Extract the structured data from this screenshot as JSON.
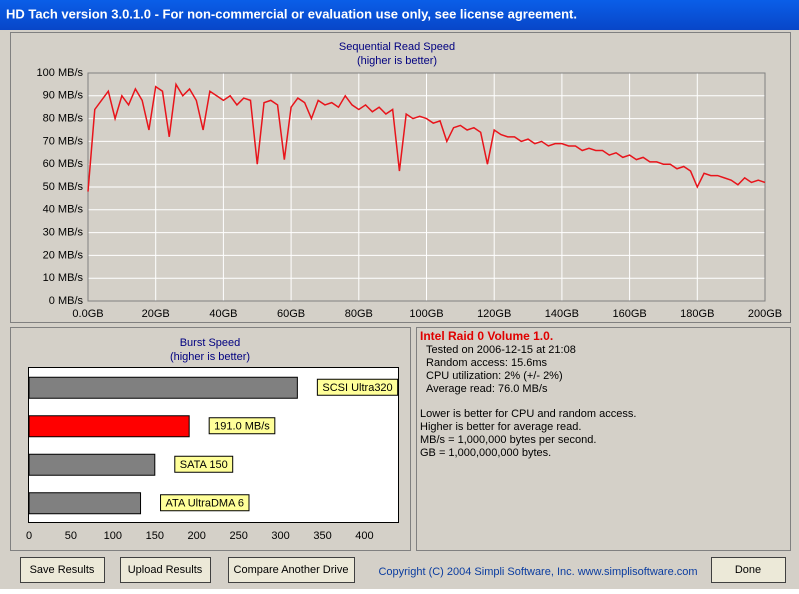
{
  "window": {
    "title": "HD Tach version 3.0.1.0  - For non-commercial or evaluation use only, see license agreement."
  },
  "chart_data": [
    {
      "type": "line",
      "title": "Sequential Read Speed",
      "subtitle": "(higher is better)",
      "color": "#e8141b",
      "grid": true,
      "x": [
        0,
        2,
        4,
        6,
        8,
        10,
        12,
        14,
        16,
        18,
        20,
        22,
        24,
        26,
        28,
        30,
        32,
        34,
        36,
        38,
        40,
        42,
        44,
        46,
        48,
        50,
        52,
        54,
        56,
        58,
        60,
        62,
        64,
        66,
        68,
        70,
        72,
        74,
        76,
        78,
        80,
        82,
        84,
        86,
        88,
        90,
        92,
        94,
        96,
        98,
        100,
        102,
        104,
        106,
        108,
        110,
        112,
        114,
        116,
        118,
        120,
        122,
        124,
        126,
        128,
        130,
        132,
        134,
        136,
        138,
        140,
        142,
        144,
        146,
        148,
        150,
        152,
        154,
        156,
        158,
        160,
        162,
        164,
        166,
        168,
        170,
        172,
        174,
        176,
        178,
        180,
        182,
        184,
        186,
        188,
        190,
        192,
        194,
        196,
        198,
        200
      ],
      "values": [
        48,
        84,
        88,
        92,
        80,
        90,
        86,
        93,
        88,
        75,
        94,
        92,
        72,
        95,
        90,
        93,
        88,
        75,
        92,
        90,
        88,
        90,
        86,
        89,
        88,
        60,
        87,
        88,
        86,
        62,
        85,
        89,
        87,
        80,
        88,
        86,
        87,
        85,
        90,
        86,
        84,
        86,
        83,
        85,
        82,
        84,
        57,
        82,
        80,
        81,
        80,
        78,
        79,
        70,
        76,
        77,
        75,
        76,
        74,
        60,
        75,
        73,
        72,
        72,
        70,
        71,
        69,
        70,
        68,
        69,
        69,
        68,
        68,
        66,
        67,
        66,
        66,
        64,
        65,
        63,
        64,
        62,
        63,
        61,
        61,
        60,
        60,
        58,
        59,
        57,
        50,
        56,
        55,
        55,
        54,
        53,
        51,
        54,
        52,
        53,
        52
      ],
      "xlim": [
        0,
        200
      ],
      "ylim": [
        0,
        100
      ],
      "xticks": [
        {
          "value": 0,
          "label": "0.0GB"
        },
        {
          "value": 20,
          "label": "20GB"
        },
        {
          "value": 40,
          "label": "40GB"
        },
        {
          "value": 60,
          "label": "60GB"
        },
        {
          "value": 80,
          "label": "80GB"
        },
        {
          "value": 100,
          "label": "100GB"
        },
        {
          "value": 120,
          "label": "120GB"
        },
        {
          "value": 140,
          "label": "140GB"
        },
        {
          "value": 160,
          "label": "160GB"
        },
        {
          "value": 180,
          "label": "180GB"
        },
        {
          "value": 200,
          "label": "200GB"
        }
      ],
      "yticks": [
        {
          "value": 0,
          "label": "0 MB/s"
        },
        {
          "value": 10,
          "label": "10 MB/s"
        },
        {
          "value": 20,
          "label": "20 MB/s"
        },
        {
          "value": 30,
          "label": "30 MB/s"
        },
        {
          "value": 40,
          "label": "40 MB/s"
        },
        {
          "value": 50,
          "label": "50 MB/s"
        },
        {
          "value": 60,
          "label": "60 MB/s"
        },
        {
          "value": 70,
          "label": "70 MB/s"
        },
        {
          "value": 80,
          "label": "80 MB/s"
        },
        {
          "value": 90,
          "label": "90 MB/s"
        },
        {
          "value": 100,
          "label": "100 MB/s"
        }
      ]
    },
    {
      "type": "hbar",
      "title": "Burst Speed",
      "subtitle": "(higher is better)",
      "categories": [
        "SCSI Ultra320",
        null,
        "SATA 150",
        "ATA UltraDMA 6"
      ],
      "values": [
        320,
        191,
        150,
        133
      ],
      "value_labels": [
        null,
        "191.0 MB/s",
        null,
        null
      ],
      "colors": [
        "#808080",
        "#ff0000",
        "#808080",
        "#808080"
      ],
      "xlim": [
        0,
        440
      ],
      "xticks": [
        0,
        50,
        100,
        150,
        200,
        250,
        300,
        350,
        400
      ]
    }
  ],
  "info": {
    "title": "Intel Raid 0 Volume 1.0.",
    "lines": [
      "Tested on 2006-12-15 at 21:08",
      "Random access: 15.6ms",
      "CPU utilization: 2% (+/- 2%)",
      "Average read: 76.0 MB/s"
    ],
    "notes": [
      "Lower is better for CPU and random access.",
      "Higher is better for average read.",
      "MB/s = 1,000,000 bytes per second.",
      "GB = 1,000,000,000 bytes."
    ]
  },
  "buttons": [
    "Save Results",
    "Upload Results",
    "Compare Another Drive",
    "Done"
  ],
  "footer": {
    "copyright": "Copyright (C) 2004 Simpli Software, Inc. www.simplisoftware.com"
  }
}
